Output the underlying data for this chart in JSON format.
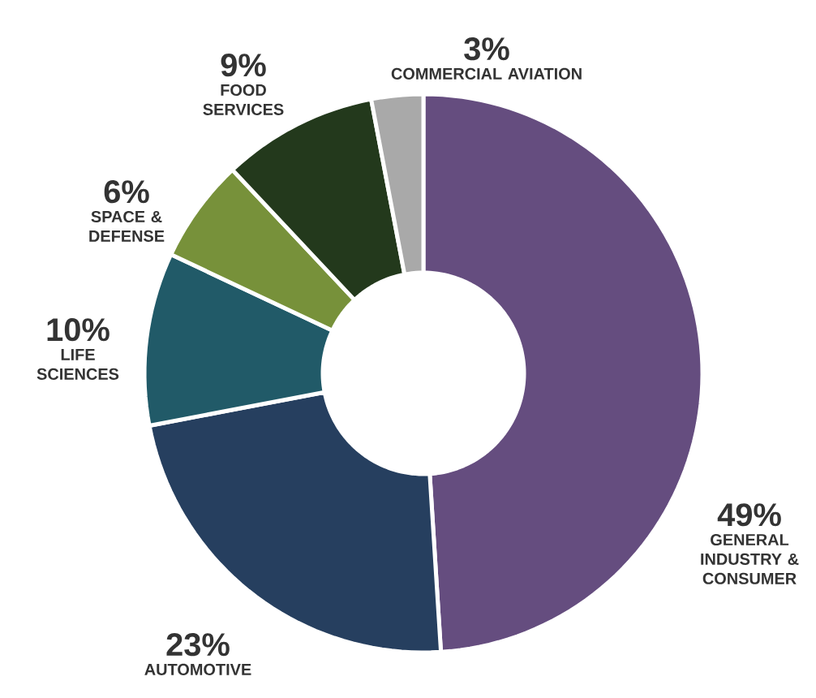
{
  "chart_data": {
    "type": "donut",
    "categories": [
      "GENERAL INDUSTRY & CONSUMER",
      "AUTOMOTIVE",
      "LIFE SCIENCES",
      "SPACE & DEFENSE",
      "FOOD SERVICES",
      "COMMERCIAL AVIATION"
    ],
    "values": [
      49,
      23,
      10,
      6,
      9,
      3
    ],
    "value_labels": [
      "49%",
      "23%",
      "10%",
      "6%",
      "9%",
      "3%"
    ],
    "colors": [
      "#654d7f",
      "#263f5f",
      "#215a68",
      "#77913a",
      "#23391c",
      "#a9a9a9"
    ]
  }
}
